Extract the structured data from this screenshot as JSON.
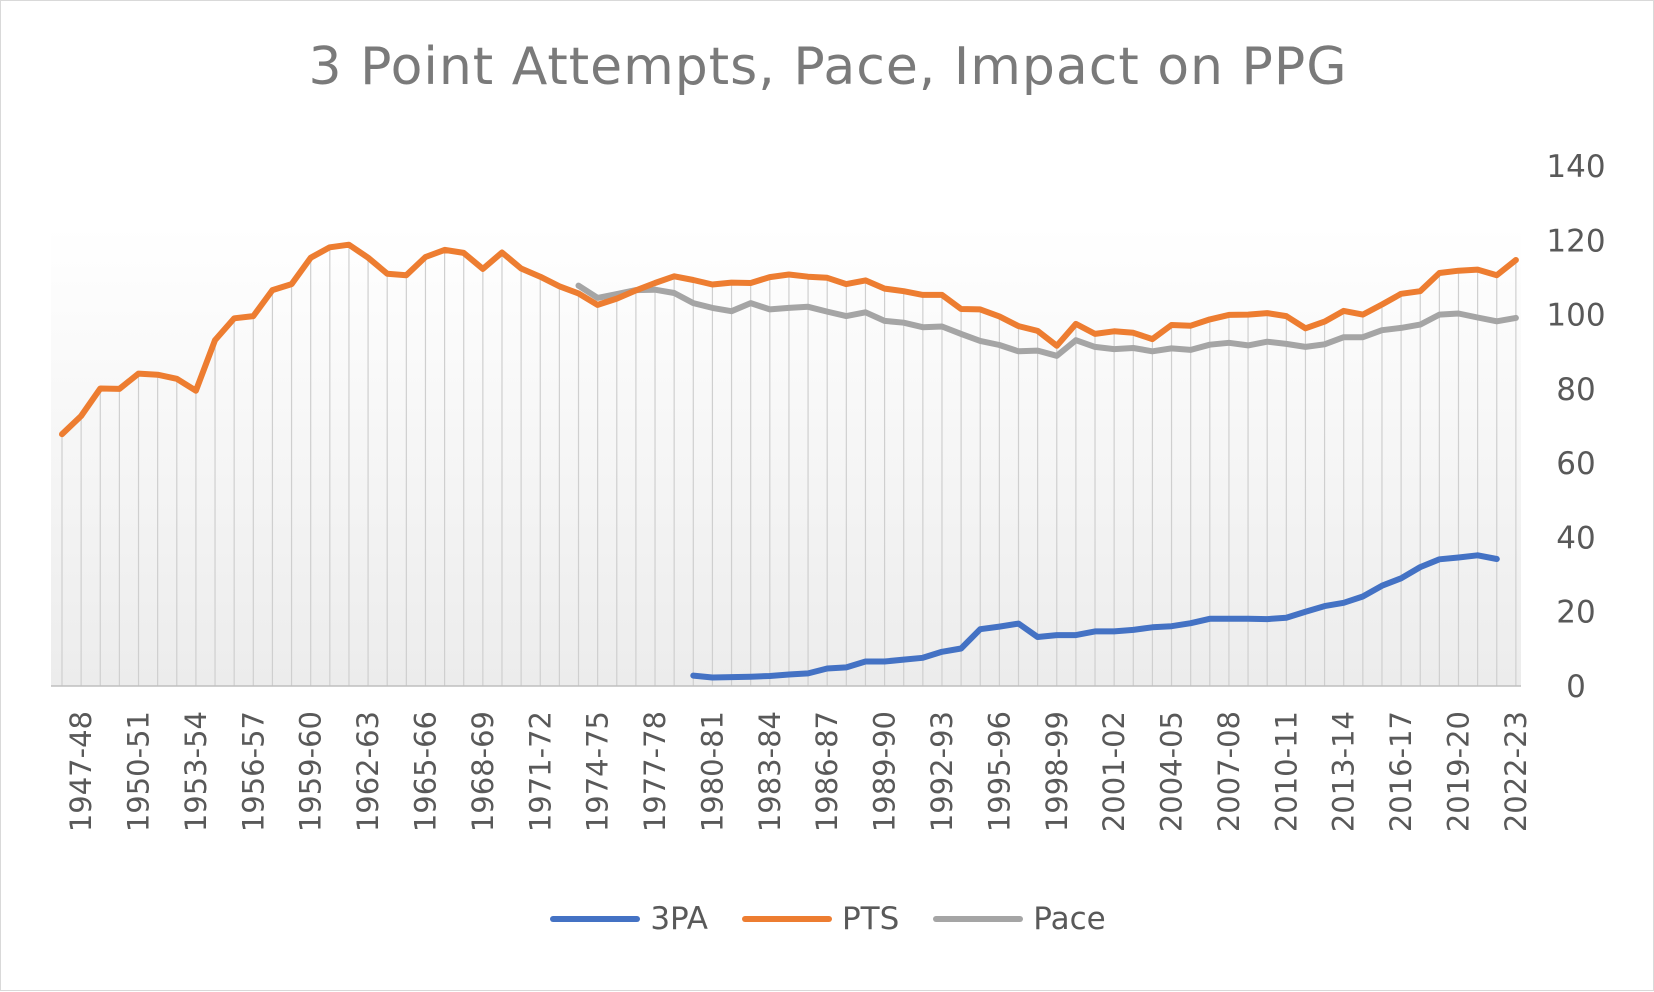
{
  "chart_data": {
    "type": "line",
    "title": "3 Point Attempts, Pace, Impact on PPG",
    "xlabel": "",
    "ylabel": "",
    "ylim": [
      0,
      140
    ],
    "yticks": [
      "0",
      "20",
      "40",
      "60",
      "80",
      "100",
      "120",
      "140"
    ],
    "x_tick_labels": [
      "1947-48",
      "1950-51",
      "1953-54",
      "1956-57",
      "1959-60",
      "1962-63",
      "1965-66",
      "1968-69",
      "1971-72",
      "1974-75",
      "1977-78",
      "1980-81",
      "1983-84",
      "1986-87",
      "1989-90",
      "1992-93",
      "1995-96",
      "1998-99",
      "2001-02",
      "2004-05",
      "2007-08",
      "2010-11",
      "2013-14",
      "2016-17",
      "2019-20",
      "2022-23"
    ],
    "legend_position": "bottom",
    "series": [
      {
        "name": "3PA",
        "color": "#4472c4",
        "start_season": "1979-80",
        "values": [
          2.8,
          2.3,
          2.4,
          2.5,
          2.7,
          3.1,
          3.4,
          4.7,
          5.0,
          6.6,
          6.6,
          7.1,
          7.6,
          9.2,
          10.1,
          15.3,
          16.0,
          16.8,
          13.2,
          13.7,
          13.7,
          14.7,
          14.7,
          15.1,
          15.8,
          16.1,
          16.9,
          18.1,
          18.1,
          18.1,
          18.0,
          18.4,
          20.0,
          21.5,
          22.4,
          24.1,
          27.0,
          29.0,
          32.0,
          34.1,
          34.6,
          35.2,
          34.2
        ]
      },
      {
        "name": "PTS",
        "color": "#ed7d31",
        "start_season": "1946-47",
        "values": [
          67.8,
          72.7,
          80.1,
          80.0,
          84.1,
          83.8,
          82.7,
          79.5,
          93.1,
          99.0,
          99.6,
          106.6,
          108.2,
          115.3,
          118.1,
          118.8,
          115.3,
          111.0,
          110.6,
          115.5,
          117.4,
          116.6,
          112.3,
          116.7,
          112.4,
          110.2,
          107.6,
          105.7,
          102.6,
          104.3,
          106.5,
          108.5,
          110.3,
          109.3,
          108.1,
          108.6,
          108.5,
          110.1,
          110.8,
          110.2,
          109.9,
          108.2,
          109.2,
          107.0,
          106.3,
          105.3,
          105.3,
          101.5,
          101.4,
          99.5,
          96.9,
          95.6,
          91.6,
          97.5,
          94.8,
          95.5,
          95.1,
          93.4,
          97.2,
          97.0,
          98.7,
          99.9,
          100.0,
          100.4,
          99.6,
          96.3,
          98.1,
          101.0,
          100.0,
          102.7,
          105.6,
          106.3,
          111.2,
          111.8,
          112.1,
          110.6,
          114.7
        ]
      },
      {
        "name": "Pace",
        "color": "#a5a5a5",
        "start_season": "1973-74",
        "values": [
          107.8,
          104.5,
          105.5,
          106.6,
          106.7,
          105.8,
          103.1,
          101.8,
          100.9,
          103.1,
          101.4,
          101.8,
          102.1,
          100.8,
          99.6,
          100.6,
          98.3,
          97.8,
          96.6,
          96.8,
          94.8,
          92.9,
          91.8,
          90.1,
          90.3,
          88.9,
          93.1,
          91.3,
          90.7,
          91.0,
          90.1,
          90.9,
          90.5,
          91.9,
          92.4,
          91.7,
          92.7,
          92.1,
          91.3,
          92.0,
          93.9,
          93.9,
          95.8,
          96.4,
          97.3,
          100.0,
          100.3,
          99.2,
          98.2,
          99.1
        ]
      }
    ]
  }
}
